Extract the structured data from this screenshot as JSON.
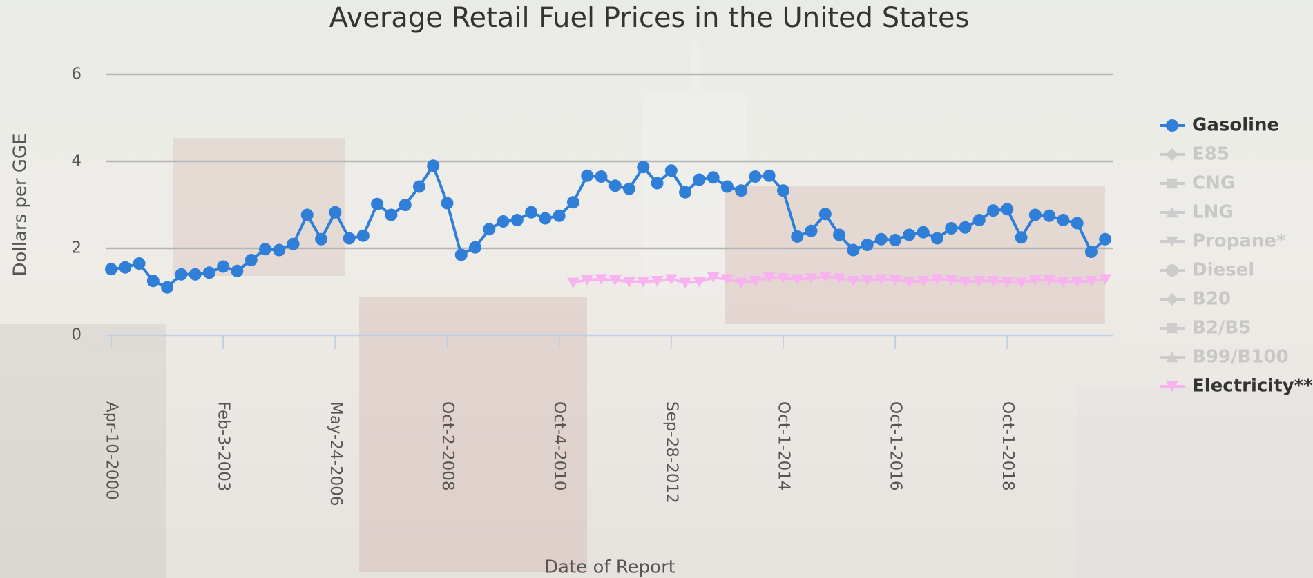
{
  "chart_data": {
    "type": "line",
    "title": "Average Retail Fuel Prices in the United States",
    "y_label": "Dollars per GGE",
    "x_label": "Date of Report",
    "categories": [
      "Apr-10-2000",
      null,
      null,
      null,
      null,
      null,
      null,
      null,
      "Feb-3-2003",
      null,
      null,
      null,
      null,
      null,
      null,
      null,
      "May-24-2006",
      null,
      null,
      null,
      null,
      null,
      null,
      null,
      "Oct-2-2008",
      null,
      null,
      null,
      null,
      null,
      null,
      null,
      "Oct-4-2010",
      null,
      null,
      null,
      null,
      null,
      null,
      null,
      "Sep-28-2012",
      null,
      null,
      null,
      null,
      null,
      null,
      null,
      "Oct-1-2014",
      null,
      null,
      null,
      null,
      null,
      null,
      null,
      "Oct-1-2016",
      null,
      null,
      null,
      null,
      null,
      null,
      null,
      "Oct-1-2018",
      null,
      null,
      null,
      null,
      null,
      null,
      null
    ],
    "series": [
      {
        "name": "Gasoline",
        "color": "#2f7ed8",
        "marker": "circle",
        "values": [
          1.52,
          1.56,
          1.65,
          1.25,
          1.1,
          1.4,
          1.4,
          1.44,
          1.58,
          1.48,
          1.73,
          1.98,
          1.96,
          2.1,
          2.77,
          2.21,
          2.83,
          2.23,
          2.29,
          3.02,
          2.77,
          3.0,
          3.42,
          3.9,
          3.04,
          1.85,
          2.02,
          2.44,
          2.62,
          2.65,
          2.83,
          2.69,
          2.75,
          3.06,
          3.67,
          3.65,
          3.44,
          3.37,
          3.87,
          3.5,
          3.79,
          3.29,
          3.58,
          3.63,
          3.42,
          3.33,
          3.65,
          3.67,
          3.33,
          2.27,
          2.4,
          2.79,
          2.31,
          1.96,
          2.08,
          2.21,
          2.19,
          2.31,
          2.37,
          2.23,
          2.46,
          2.48,
          2.65,
          2.87,
          2.9,
          2.25,
          2.77,
          2.75,
          2.65,
          2.58,
          1.92,
          2.21
        ]
      },
      {
        "name": "Electricity**",
        "color": "#f7b2ef",
        "marker": "triangle-down",
        "values": [
          null,
          null,
          null,
          null,
          null,
          null,
          null,
          null,
          null,
          null,
          null,
          null,
          null,
          null,
          null,
          null,
          null,
          null,
          null,
          null,
          null,
          null,
          null,
          null,
          null,
          null,
          null,
          null,
          null,
          null,
          null,
          null,
          null,
          1.21,
          1.27,
          1.29,
          1.27,
          1.23,
          1.23,
          1.25,
          1.29,
          1.21,
          1.23,
          1.33,
          1.29,
          1.21,
          1.25,
          1.33,
          1.31,
          1.29,
          1.31,
          1.35,
          1.31,
          1.25,
          1.27,
          1.29,
          1.27,
          1.23,
          1.25,
          1.29,
          1.27,
          1.23,
          1.25,
          1.25,
          1.23,
          1.21,
          1.27,
          1.27,
          1.23,
          1.23,
          1.25,
          1.29
        ]
      }
    ],
    "hidden_series": [
      {
        "name": "E85",
        "marker": "diamond"
      },
      {
        "name": "CNG",
        "marker": "square"
      },
      {
        "name": "LNG",
        "marker": "triangle"
      },
      {
        "name": "Propane*",
        "marker": "triangle-down"
      },
      {
        "name": "Diesel",
        "marker": "circle"
      },
      {
        "name": "B20",
        "marker": "diamond"
      },
      {
        "name": "B2/B5",
        "marker": "square"
      },
      {
        "name": "B99/B100",
        "marker": "triangle"
      }
    ],
    "legend_order": [
      "Gasoline",
      "E85",
      "CNG",
      "LNG",
      "Propane*",
      "Diesel",
      "B20",
      "B2/B5",
      "B99/B100",
      "Electricity**"
    ],
    "ylim": [
      0,
      6
    ],
    "yticks": [
      0,
      2,
      4,
      6
    ],
    "grid": true,
    "legend": "right"
  }
}
